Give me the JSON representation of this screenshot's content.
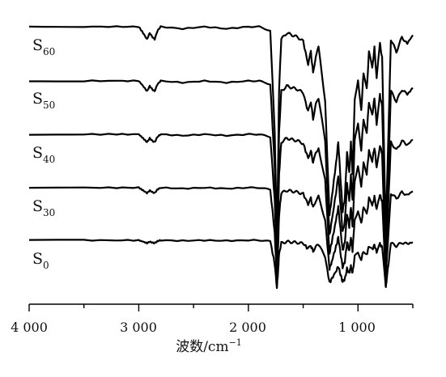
{
  "colors": {
    "background": "#ffffff",
    "trace": "#000000",
    "axis": "#000000"
  },
  "chart_data": {
    "type": "line",
    "title": "",
    "xlabel_main": "波数",
    "xlabel_unit": "/cm",
    "xlabel_sup": "−1",
    "ylabel": "",
    "xlim": [
      4000,
      500
    ],
    "x_axis_reversed": true,
    "x_ticks": [
      4000,
      3000,
      2000,
      1000
    ],
    "x_tick_labels": [
      "4 000",
      "3 000",
      "2 000",
      "1 000"
    ],
    "legend": "none",
    "grid": false,
    "series_note_stacked": "spectra vertically offset, stacked S0 (bottom) to S60 (top); y axis not labeled",
    "series": [
      {
        "name": "S60",
        "base": "S",
        "sub": "60"
      },
      {
        "name": "S50",
        "base": "S",
        "sub": "50"
      },
      {
        "name": "S40",
        "base": "S",
        "sub": "40"
      },
      {
        "name": "S30",
        "base": "S",
        "sub": "30"
      },
      {
        "name": "S0",
        "base": "S",
        "sub": "0"
      }
    ],
    "spectrum_x": [
      4000,
      3500,
      3200,
      3000,
      2960,
      2925,
      2900,
      2875,
      2855,
      2830,
      2800,
      2600,
      2400,
      2200,
      2000,
      1900,
      1800,
      1760,
      1740,
      1730,
      1720,
      1700,
      1650,
      1600,
      1550,
      1500,
      1455,
      1430,
      1410,
      1385,
      1360,
      1300,
      1260,
      1240,
      1200,
      1180,
      1160,
      1140,
      1120,
      1100,
      1080,
      1065,
      1050,
      1030,
      1000,
      970,
      950,
      920,
      900,
      870,
      850,
      830,
      800,
      780,
      750,
      745,
      740,
      700,
      650,
      600,
      550,
      500
    ],
    "spectrum_rel_depth": [
      0,
      0,
      0,
      0,
      0.03,
      0.06,
      0.03,
      0.05,
      0.06,
      0.02,
      0,
      0.01,
      0,
      0.01,
      0,
      0,
      0.02,
      0.5,
      1.0,
      0.7,
      0.3,
      0.06,
      0.03,
      0.04,
      0.05,
      0.07,
      0.18,
      0.12,
      0.22,
      0.14,
      0.1,
      0.35,
      0.9,
      0.82,
      0.65,
      0.55,
      0.72,
      0.88,
      0.82,
      0.6,
      0.7,
      0.55,
      0.7,
      0.35,
      0.25,
      0.4,
      0.22,
      0.3,
      0.12,
      0.2,
      0.1,
      0.25,
      0.08,
      0.15,
      0.9,
      1.0,
      0.85,
      0.06,
      0.12,
      0.05,
      0.08,
      0.04
    ],
    "spectrum_base_depth_scale": [
      0.78,
      0.8,
      0.82,
      0.84,
      0.86
    ]
  }
}
